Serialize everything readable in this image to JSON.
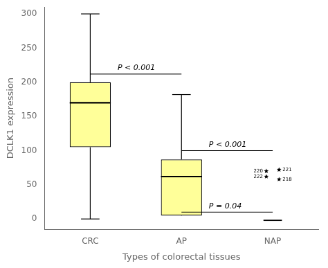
{
  "chart_data": {
    "type": "box",
    "categories": [
      "CRC",
      "AP",
      "NAP"
    ],
    "xlabel": "Types of colorectal tissues",
    "ylabel": "DCLK1 expression",
    "boxes": [
      {
        "q1": 105,
        "median": 170,
        "q3": 200,
        "whislo": 0,
        "whishi": 300
      },
      {
        "q1": 5,
        "median": 62,
        "q3": 87,
        "whislo": 10,
        "whishi": 182
      },
      {
        "median": -2
      }
    ],
    "color": "#ffff99",
    "marker": "star",
    "outliers": [
      {
        "category": "NAP",
        "value": 70,
        "label": "220"
      },
      {
        "category": "NAP",
        "value": 72,
        "label": "221"
      },
      {
        "category": "NAP",
        "value": 62,
        "label": "222"
      },
      {
        "category": "NAP",
        "value": 58,
        "label": "218"
      }
    ],
    "annotations": [
      {
        "from": "CRC",
        "to": "AP",
        "y": 212,
        "label": "P < 0.001"
      },
      {
        "from": "AP",
        "to": "NAP",
        "y": 100,
        "label": "P < 0.001"
      },
      {
        "from": "AP",
        "to": "NAP",
        "y": 10,
        "label": "P = 0.04"
      }
    ],
    "ylim": [
      -15,
      310
    ],
    "yticks": [
      0,
      50,
      100,
      150,
      200,
      250,
      300
    ],
    "grid": false
  }
}
